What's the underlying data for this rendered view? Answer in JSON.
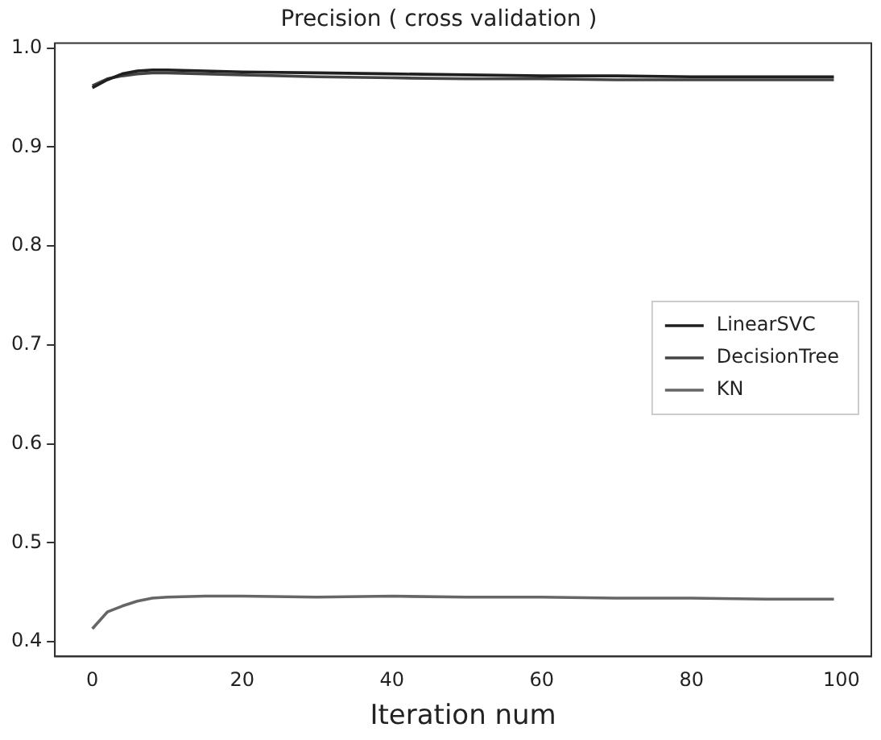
{
  "chart_data": {
    "type": "line",
    "title": "Precision ( cross validation )",
    "xlabel": "Iteration num",
    "xlim": [
      -5,
      104
    ],
    "xticks": [
      0,
      20,
      40,
      60,
      80,
      100
    ],
    "ylim": [
      0.385,
      1.005
    ],
    "yticks": [
      0.4,
      0.5,
      0.6,
      0.7,
      0.8,
      0.9,
      {
        "value": 1.0,
        "label": "1.0"
      }
    ],
    "grid": false,
    "legend": "right",
    "marker": "none",
    "line_style": "solid",
    "x": [
      0,
      2,
      4,
      6,
      8,
      10,
      15,
      20,
      30,
      40,
      50,
      60,
      70,
      80,
      90,
      99
    ],
    "series": [
      {
        "name": "LinearSVC",
        "color": "#1f1f1f",
        "values": [
          0.96,
          0.968,
          0.974,
          0.977,
          0.978,
          0.978,
          0.977,
          0.976,
          0.975,
          0.974,
          0.973,
          0.972,
          0.972,
          0.971,
          0.971,
          0.971
        ]
      },
      {
        "name": "DecisionTree",
        "color": "#444444",
        "values": [
          0.962,
          0.969,
          0.972,
          0.974,
          0.975,
          0.975,
          0.974,
          0.973,
          0.971,
          0.97,
          0.969,
          0.969,
          0.968,
          0.968,
          0.968,
          0.968
        ]
      },
      {
        "name": "KN",
        "color": "#666666",
        "values": [
          0.413,
          0.43,
          0.436,
          0.441,
          0.444,
          0.445,
          0.446,
          0.446,
          0.445,
          0.446,
          0.445,
          0.445,
          0.444,
          0.444,
          0.443,
          0.443
        ]
      }
    ]
  }
}
